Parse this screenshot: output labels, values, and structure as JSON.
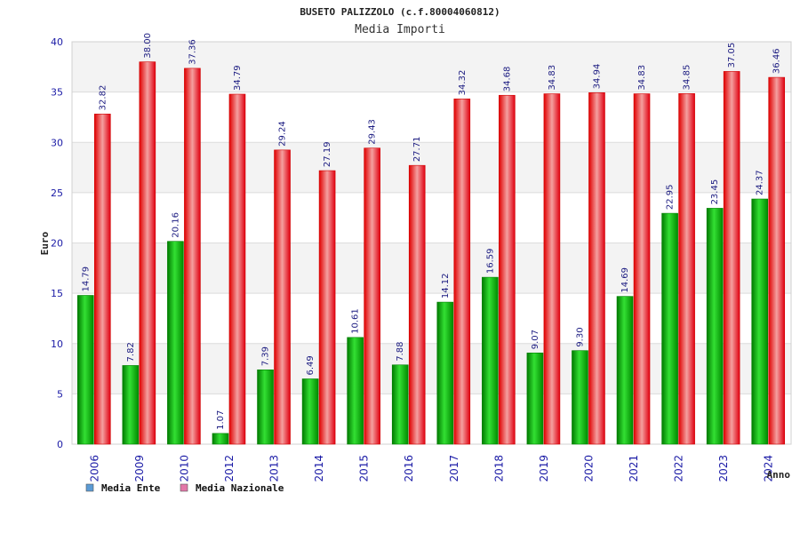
{
  "chart_data": {
    "type": "bar",
    "title": "BUSETO PALIZZOLO (c.f.80004060812)",
    "subtitle": "Media Importi",
    "xlabel": "Anno",
    "ylabel": "Euro",
    "ylim": [
      0,
      40
    ],
    "yticks": [
      0,
      5,
      10,
      15,
      20,
      25,
      30,
      35,
      40
    ],
    "grid": true,
    "legend_placement": "bottom-left",
    "categories": [
      "2006",
      "2009",
      "2010",
      "2012",
      "2013",
      "2014",
      "2015",
      "2016",
      "2017",
      "2018",
      "2019",
      "2020",
      "2021",
      "2022",
      "2023",
      "2024"
    ],
    "series": [
      {
        "name": "Media Ente",
        "color": "#00b300",
        "legend_color": "#5b9bd5",
        "values": [
          14.79,
          7.82,
          20.16,
          1.07,
          7.39,
          6.49,
          10.61,
          7.88,
          14.12,
          16.59,
          9.07,
          9.3,
          14.69,
          22.95,
          23.45,
          24.37
        ],
        "labels": [
          "14.79",
          "7.82",
          "20.16",
          "1.07",
          "7.39",
          "6.49",
          "10.61",
          "7.88",
          "14.12",
          "16.59",
          "9.07",
          "9.30",
          "14.69",
          "22.95",
          "23.45",
          "24.37"
        ]
      },
      {
        "name": "Media Nazionale",
        "color": "#ff1a1a",
        "legend_color": "#e377a8",
        "values": [
          32.82,
          38.0,
          37.36,
          34.79,
          29.24,
          27.19,
          29.43,
          27.71,
          34.32,
          34.68,
          34.83,
          34.94,
          34.83,
          34.85,
          37.05,
          36.46
        ],
        "labels": [
          "32.82",
          "38.00",
          "37.36",
          "34.79",
          "29.24",
          "27.19",
          "29.43",
          "27.71",
          "34.32",
          "34.68",
          "34.83",
          "34.94",
          "34.83",
          "34.85",
          "37.05",
          "36.46"
        ]
      }
    ]
  }
}
